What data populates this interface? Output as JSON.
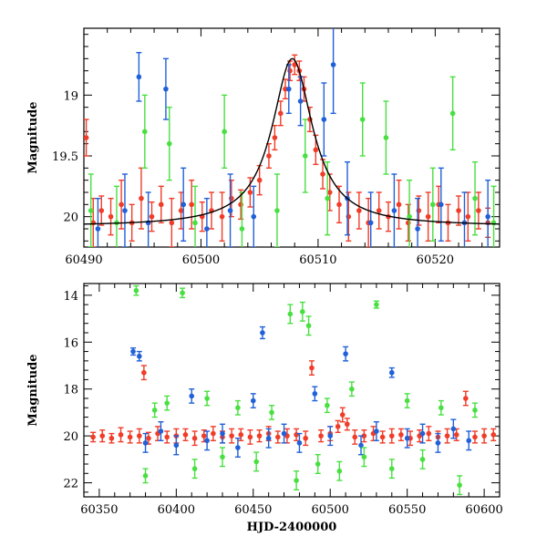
{
  "chart_data": [
    {
      "type": "scatter",
      "panel": "top",
      "xlabel": "",
      "ylabel": "Magnitude",
      "xlim": [
        60490,
        60525.5
      ],
      "ylim": [
        20.25,
        18.45
      ],
      "y_inverted": true,
      "xticks": [
        "60490",
        "60500",
        "60510",
        "60520"
      ],
      "yticks": [
        "19",
        "19.5",
        "20"
      ],
      "model_curve": {
        "type": "peaked-lightcurve",
        "t0": 60507.8,
        "peak_mag": 18.7,
        "base_mag": 20.08,
        "width_days": 2.1
      },
      "series": [
        {
          "color": "#f03c28",
          "points": [
            [
              60490.2,
              19.35,
              0.15
            ],
            [
              60490.8,
              20.05,
              0.2
            ],
            [
              60491.5,
              19.95,
              0.12
            ],
            [
              60492.3,
              20.0,
              0.15
            ],
            [
              60493.2,
              19.9,
              0.2
            ],
            [
              60494.1,
              20.05,
              0.15
            ],
            [
              60494.9,
              19.85,
              0.25
            ],
            [
              60495.8,
              20.0,
              0.12
            ],
            [
              60496.6,
              19.9,
              0.15
            ],
            [
              60497.5,
              20.05,
              0.2
            ],
            [
              60498.3,
              19.95,
              0.15
            ],
            [
              60499.2,
              19.9,
              0.2
            ],
            [
              60500.1,
              20.0,
              0.12
            ],
            [
              60500.9,
              19.95,
              0.15
            ],
            [
              60501.8,
              20.0,
              0.2
            ],
            [
              60502.6,
              19.85,
              0.15
            ],
            [
              60503.4,
              19.9,
              0.12
            ],
            [
              60504.2,
              19.8,
              0.12
            ],
            [
              60505.0,
              19.7,
              0.12
            ],
            [
              60505.8,
              19.5,
              0.1
            ],
            [
              60506.3,
              19.35,
              0.1
            ],
            [
              60506.8,
              19.15,
              0.1
            ],
            [
              60507.2,
              18.95,
              0.08
            ],
            [
              60507.6,
              18.8,
              0.08
            ],
            [
              60508.0,
              18.75,
              0.08
            ],
            [
              60508.4,
              18.8,
              0.08
            ],
            [
              60508.8,
              18.95,
              0.1
            ],
            [
              60509.3,
              19.2,
              0.1
            ],
            [
              60509.8,
              19.45,
              0.12
            ],
            [
              60510.4,
              19.65,
              0.12
            ],
            [
              60511.0,
              19.8,
              0.15
            ],
            [
              60511.8,
              19.9,
              0.15
            ],
            [
              60512.6,
              20.0,
              0.2
            ],
            [
              60513.5,
              19.95,
              0.15
            ],
            [
              60514.3,
              20.05,
              0.2
            ],
            [
              60515.2,
              19.95,
              0.15
            ],
            [
              60516.0,
              20.0,
              0.12
            ],
            [
              60516.9,
              19.9,
              0.2
            ],
            [
              60517.7,
              20.05,
              0.15
            ],
            [
              60518.6,
              19.95,
              0.12
            ],
            [
              60519.4,
              20.0,
              0.2
            ],
            [
              60520.3,
              19.9,
              0.15
            ],
            [
              60521.1,
              20.05,
              0.15
            ],
            [
              60522.0,
              19.95,
              0.12
            ],
            [
              60522.8,
              20.0,
              0.2
            ],
            [
              60523.7,
              19.95,
              0.15
            ],
            [
              60524.5,
              20.05,
              0.12
            ]
          ]
        },
        {
          "color": "#2060d8",
          "points": [
            [
              60491.2,
              20.1,
              0.25
            ],
            [
              60493.5,
              19.95,
              0.3
            ],
            [
              60494.7,
              18.85,
              0.2
            ],
            [
              60495.5,
              20.05,
              0.25
            ],
            [
              60497.0,
              18.95,
              0.25
            ],
            [
              60498.5,
              19.9,
              0.3
            ],
            [
              60500.5,
              20.1,
              0.25
            ],
            [
              60502.5,
              19.95,
              0.3
            ],
            [
              60504.5,
              20.0,
              0.25
            ],
            [
              60507.5,
              18.95,
              0.2
            ],
            [
              60508.5,
              19.05,
              0.2
            ],
            [
              60510.5,
              19.2,
              0.3
            ],
            [
              60511.3,
              18.75,
              0.4
            ],
            [
              60512.5,
              19.85,
              0.3
            ],
            [
              60514.5,
              20.05,
              0.25
            ],
            [
              60516.5,
              19.95,
              0.3
            ],
            [
              60518.5,
              20.1,
              0.25
            ],
            [
              60520.5,
              19.9,
              0.3
            ],
            [
              60522.5,
              20.05,
              0.25
            ],
            [
              60524.5,
              20.0,
              0.3
            ]
          ]
        },
        {
          "color": "#48e040",
          "points": [
            [
              60490.6,
              19.95,
              0.3
            ],
            [
              60492.8,
              20.05,
              0.3
            ],
            [
              60495.2,
              19.3,
              0.3
            ],
            [
              60497.3,
              19.4,
              0.3
            ],
            [
              60499.5,
              20.05,
              0.3
            ],
            [
              60502.0,
              19.3,
              0.3
            ],
            [
              60503.5,
              20.1,
              0.3
            ],
            [
              60506.5,
              19.95,
              0.3
            ],
            [
              60508.9,
              19.5,
              0.3
            ],
            [
              60510.8,
              19.85,
              0.3
            ],
            [
              60513.8,
              19.2,
              0.3
            ],
            [
              60515.8,
              19.35,
              0.3
            ],
            [
              60517.8,
              20.0,
              0.3
            ],
            [
              60519.8,
              19.9,
              0.3
            ],
            [
              60521.5,
              19.15,
              0.3
            ],
            [
              60523.4,
              19.85,
              0.3
            ],
            [
              60525.0,
              20.05,
              0.3
            ]
          ]
        }
      ]
    },
    {
      "type": "scatter",
      "panel": "bottom",
      "xlabel": "HJD-2400000",
      "ylabel": "Magnitude",
      "xlim": [
        60340,
        60610
      ],
      "ylim": [
        22.6,
        13.5
      ],
      "y_inverted": true,
      "xticks": [
        "60350",
        "60400",
        "60450",
        "60500",
        "60550",
        "60600"
      ],
      "yticks": [
        "14",
        "16",
        "18",
        "20",
        "22"
      ],
      "series": [
        {
          "color": "#f03c28",
          "points": [
            [
              60346,
              20.05,
              0.2
            ],
            [
              60352,
              20.0,
              0.25
            ],
            [
              60358,
              20.1,
              0.2
            ],
            [
              60364,
              19.95,
              0.3
            ],
            [
              60370,
              20.05,
              0.25
            ],
            [
              60376,
              20.0,
              0.3
            ],
            [
              60379,
              17.3,
              0.3
            ],
            [
              60382,
              20.1,
              0.25
            ],
            [
              60388,
              19.9,
              0.3
            ],
            [
              60394,
              20.05,
              0.25
            ],
            [
              60400,
              20.0,
              0.3
            ],
            [
              60406,
              19.95,
              0.25
            ],
            [
              60412,
              20.1,
              0.3
            ],
            [
              60418,
              20.0,
              0.25
            ],
            [
              60424,
              19.9,
              0.3
            ],
            [
              60430,
              20.05,
              0.25
            ],
            [
              60436,
              20.0,
              0.3
            ],
            [
              60442,
              19.95,
              0.25
            ],
            [
              60448,
              20.05,
              0.3
            ],
            [
              60454,
              20.0,
              0.25
            ],
            [
              60460,
              19.9,
              0.3
            ],
            [
              60466,
              20.05,
              0.25
            ],
            [
              60472,
              20.0,
              0.3
            ],
            [
              60478,
              19.95,
              0.25
            ],
            [
              60484,
              20.1,
              0.3
            ],
            [
              60488,
              17.1,
              0.3
            ],
            [
              60494,
              20.0,
              0.25
            ],
            [
              60500,
              19.9,
              0.3
            ],
            [
              60505,
              19.6,
              0.25
            ],
            [
              60508,
              19.1,
              0.3
            ],
            [
              60511,
              19.5,
              0.25
            ],
            [
              60516,
              20.05,
              0.3
            ],
            [
              60522,
              20.0,
              0.25
            ],
            [
              60528,
              19.9,
              0.3
            ],
            [
              60534,
              20.05,
              0.25
            ],
            [
              60540,
              20.0,
              0.3
            ],
            [
              60546,
              19.95,
              0.25
            ],
            [
              60552,
              20.1,
              0.3
            ],
            [
              60558,
              20.0,
              0.25
            ],
            [
              60564,
              19.9,
              0.3
            ],
            [
              60570,
              20.05,
              0.25
            ],
            [
              60576,
              20.0,
              0.3
            ],
            [
              60582,
              19.95,
              0.25
            ],
            [
              60588,
              18.4,
              0.3
            ],
            [
              60594,
              20.05,
              0.25
            ],
            [
              60600,
              20.0,
              0.3
            ],
            [
              60606,
              19.95,
              0.25
            ]
          ]
        },
        {
          "color": "#2060d8",
          "points": [
            [
              60372,
              16.4,
              0.15
            ],
            [
              60376,
              16.6,
              0.2
            ],
            [
              60380,
              20.3,
              0.4
            ],
            [
              60390,
              19.8,
              0.4
            ],
            [
              60400,
              20.4,
              0.4
            ],
            [
              60410,
              18.3,
              0.3
            ],
            [
              60420,
              20.2,
              0.4
            ],
            [
              60430,
              19.9,
              0.4
            ],
            [
              60440,
              20.5,
              0.4
            ],
            [
              60450,
              18.5,
              0.3
            ],
            [
              60456,
              15.6,
              0.25
            ],
            [
              60460,
              20.1,
              0.4
            ],
            [
              60470,
              19.9,
              0.4
            ],
            [
              60480,
              20.3,
              0.4
            ],
            [
              60490,
              18.2,
              0.3
            ],
            [
              60500,
              20.0,
              0.4
            ],
            [
              60510,
              16.5,
              0.3
            ],
            [
              60520,
              20.4,
              0.4
            ],
            [
              60530,
              19.8,
              0.4
            ],
            [
              60540,
              17.3,
              0.2
            ],
            [
              60550,
              20.1,
              0.4
            ],
            [
              60560,
              19.9,
              0.4
            ],
            [
              60570,
              20.3,
              0.4
            ],
            [
              60580,
              19.7,
              0.4
            ],
            [
              60590,
              20.2,
              0.4
            ]
          ]
        },
        {
          "color": "#48e040",
          "points": [
            [
              60374,
              13.8,
              0.2
            ],
            [
              60380,
              21.7,
              0.3
            ],
            [
              60386,
              18.9,
              0.3
            ],
            [
              60394,
              18.6,
              0.3
            ],
            [
              60404,
              13.9,
              0.2
            ],
            [
              60412,
              21.4,
              0.4
            ],
            [
              60420,
              18.4,
              0.3
            ],
            [
              60430,
              20.9,
              0.4
            ],
            [
              60440,
              18.8,
              0.3
            ],
            [
              60452,
              21.1,
              0.4
            ],
            [
              60462,
              19.0,
              0.3
            ],
            [
              60474,
              14.8,
              0.4
            ],
            [
              60478,
              21.9,
              0.4
            ],
            [
              60482,
              14.7,
              0.4
            ],
            [
              60486,
              15.3,
              0.4
            ],
            [
              60492,
              21.2,
              0.4
            ],
            [
              60498,
              18.7,
              0.3
            ],
            [
              60506,
              21.5,
              0.4
            ],
            [
              60514,
              18.0,
              0.3
            ],
            [
              60522,
              20.9,
              0.4
            ],
            [
              60530,
              14.4,
              0.15
            ],
            [
              60540,
              21.4,
              0.4
            ],
            [
              60550,
              18.5,
              0.3
            ],
            [
              60560,
              21.0,
              0.4
            ],
            [
              60572,
              18.8,
              0.3
            ],
            [
              60584,
              22.1,
              0.4
            ],
            [
              60594,
              18.9,
              0.3
            ]
          ]
        }
      ]
    }
  ]
}
